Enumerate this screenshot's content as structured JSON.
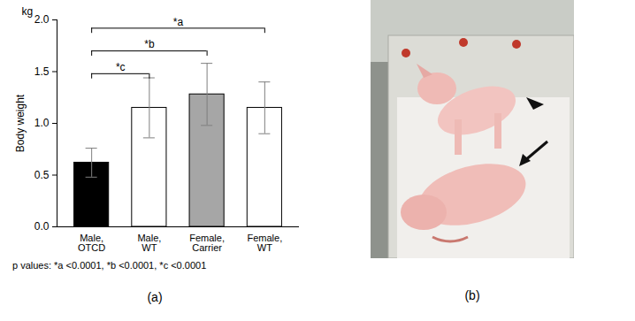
{
  "chart_data": {
    "type": "bar",
    "panel_label": "(a)",
    "y_unit": "kg",
    "ylabel": "Body weight",
    "categories": [
      "Male, OTCD",
      "Male, WT",
      "Female, Carrier",
      "Female, WT"
    ],
    "values": [
      0.62,
      1.15,
      1.28,
      1.15
    ],
    "errors": [
      0.14,
      0.29,
      0.3,
      0.25
    ],
    "colors": [
      "#000000",
      "#ffffff",
      "#a6a6a6",
      "#ffffff"
    ],
    "ylim": [
      0,
      2
    ],
    "yticks": [
      {
        "value": 0,
        "label": "0.0"
      },
      {
        "value": 0.5,
        "label": "0.5"
      },
      {
        "value": 1,
        "label": "1.0"
      },
      {
        "value": 1.5,
        "label": "1.5"
      },
      {
        "value": 2,
        "label": "2.0"
      }
    ],
    "comparisons": [
      {
        "from": "Male, OTCD",
        "to": "Male, WT",
        "label": "*c"
      },
      {
        "from": "Male, OTCD",
        "to": "Female, Carrier",
        "label": "*b"
      },
      {
        "from": "Male, OTCD",
        "to": "Female, WT",
        "label": "*a"
      }
    ],
    "note": "p values: *a <0.0001, *b <0.0001, *c <0.0001"
  },
  "photo_panel": {
    "panel_label": "(b)"
  }
}
